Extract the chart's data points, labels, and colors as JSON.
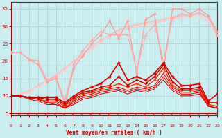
{
  "x": [
    0,
    1,
    2,
    3,
    4,
    5,
    6,
    7,
    8,
    9,
    10,
    11,
    12,
    13,
    14,
    15,
    16,
    17,
    18,
    19,
    20,
    21,
    22,
    23
  ],
  "lines": [
    {
      "y": [
        22.5,
        22.5,
        20.5,
        19.0,
        14.0,
        15.0,
        7.5,
        18.0,
        21.5,
        25.0,
        27.5,
        31.5,
        26.5,
        31.5,
        16.5,
        32.0,
        33.5,
        17.0,
        35.0,
        35.0,
        33.5,
        35.0,
        33.0,
        28.5
      ],
      "color": "#ff9999",
      "lw": 0.9,
      "marker": "D",
      "ms": 2.0,
      "zorder": 3
    },
    {
      "y": [
        22.5,
        22.5,
        20.5,
        20.0,
        14.5,
        15.5,
        8.5,
        19.0,
        23.0,
        26.0,
        28.5,
        27.5,
        27.5,
        27.5,
        17.5,
        27.5,
        30.5,
        20.0,
        32.5,
        33.5,
        33.0,
        34.0,
        32.5,
        27.5
      ],
      "color": "#ffaaaa",
      "lw": 0.9,
      "marker": "D",
      "ms": 2.0,
      "zorder": 3
    },
    {
      "y": [
        10.0,
        10.5,
        11.5,
        13.0,
        14.5,
        16.0,
        18.0,
        20.0,
        22.0,
        24.0,
        26.0,
        27.5,
        29.0,
        30.0,
        30.5,
        31.0,
        31.5,
        32.0,
        32.5,
        33.0,
        33.0,
        33.5,
        32.5,
        27.5
      ],
      "color": "#ffbbbb",
      "lw": 0.9,
      "marker": "D",
      "ms": 2.0,
      "zorder": 2
    },
    {
      "y": [
        10.0,
        10.5,
        11.0,
        12.5,
        14.0,
        15.5,
        17.5,
        19.5,
        21.5,
        23.5,
        25.5,
        27.0,
        28.0,
        29.5,
        30.0,
        30.5,
        31.0,
        31.5,
        32.0,
        32.5,
        32.5,
        32.5,
        31.5,
        27.0
      ],
      "color": "#ffcccc",
      "lw": 0.9,
      "marker": "D",
      "ms": 2.0,
      "zorder": 2
    },
    {
      "y": [
        10.0,
        10.0,
        9.5,
        9.5,
        9.5,
        9.5,
        8.0,
        10.0,
        11.5,
        12.5,
        13.5,
        15.5,
        19.5,
        14.5,
        15.5,
        14.5,
        16.5,
        19.5,
        15.5,
        13.0,
        13.0,
        13.5,
        8.5,
        10.5
      ],
      "color": "#dd0000",
      "lw": 1.2,
      "marker": "D",
      "ms": 2.2,
      "zorder": 5
    },
    {
      "y": [
        10.0,
        10.0,
        9.5,
        9.5,
        9.0,
        9.0,
        7.5,
        9.5,
        11.0,
        11.5,
        12.5,
        13.0,
        15.5,
        13.0,
        14.5,
        13.5,
        15.5,
        19.0,
        14.0,
        12.0,
        12.0,
        12.5,
        8.0,
        8.0
      ],
      "color": "#cc0000",
      "lw": 1.1,
      "marker": "D",
      "ms": 2.0,
      "zorder": 5
    },
    {
      "y": [
        10.0,
        10.0,
        9.5,
        9.0,
        8.5,
        8.5,
        7.0,
        9.0,
        10.5,
        11.0,
        12.0,
        12.5,
        13.5,
        12.5,
        13.5,
        12.5,
        14.5,
        18.0,
        13.0,
        11.5,
        11.5,
        12.0,
        7.5,
        7.0
      ],
      "color": "#ff3300",
      "lw": 1.0,
      "marker": "D",
      "ms": 1.8,
      "zorder": 4
    },
    {
      "y": [
        10.0,
        10.0,
        9.5,
        9.0,
        8.0,
        8.0,
        6.5,
        8.5,
        10.0,
        10.5,
        11.5,
        12.0,
        12.5,
        11.5,
        12.5,
        12.0,
        13.0,
        16.5,
        12.5,
        11.0,
        11.0,
        11.5,
        7.0,
        6.5
      ],
      "color": "#ff0000",
      "lw": 0.8,
      "marker": null,
      "ms": 0,
      "zorder": 4
    },
    {
      "y": [
        10.0,
        10.0,
        9.5,
        9.0,
        8.0,
        7.5,
        6.5,
        8.0,
        9.5,
        10.0,
        11.0,
        11.5,
        12.0,
        11.0,
        12.0,
        11.5,
        12.5,
        15.5,
        12.0,
        10.5,
        10.5,
        11.0,
        7.0,
        6.5
      ],
      "color": "#ff0000",
      "lw": 0.8,
      "marker": null,
      "ms": 0,
      "zorder": 4
    },
    {
      "y": [
        10.0,
        10.0,
        9.0,
        8.5,
        7.5,
        7.5,
        6.5,
        7.5,
        9.0,
        9.5,
        10.5,
        11.0,
        11.5,
        10.5,
        11.5,
        11.0,
        12.0,
        14.5,
        11.5,
        10.0,
        10.0,
        10.5,
        7.0,
        6.5
      ],
      "color": "#cc0000",
      "lw": 0.7,
      "marker": null,
      "ms": 0,
      "zorder": 3
    }
  ],
  "xlim": [
    0,
    23
  ],
  "ylim": [
    4.5,
    37
  ],
  "yticks": [
    5,
    10,
    15,
    20,
    25,
    30,
    35
  ],
  "xticks": [
    0,
    1,
    2,
    3,
    4,
    5,
    6,
    7,
    8,
    9,
    10,
    11,
    12,
    13,
    14,
    15,
    16,
    17,
    18,
    19,
    20,
    21,
    22,
    23
  ],
  "xlabel": "Vent moyen/en rafales ( km/h )",
  "bg_color": "#caeef0",
  "grid_color": "#aacccc",
  "axis_color": "#cc0000",
  "label_color": "#cc0000",
  "tick_color": "#cc0000"
}
